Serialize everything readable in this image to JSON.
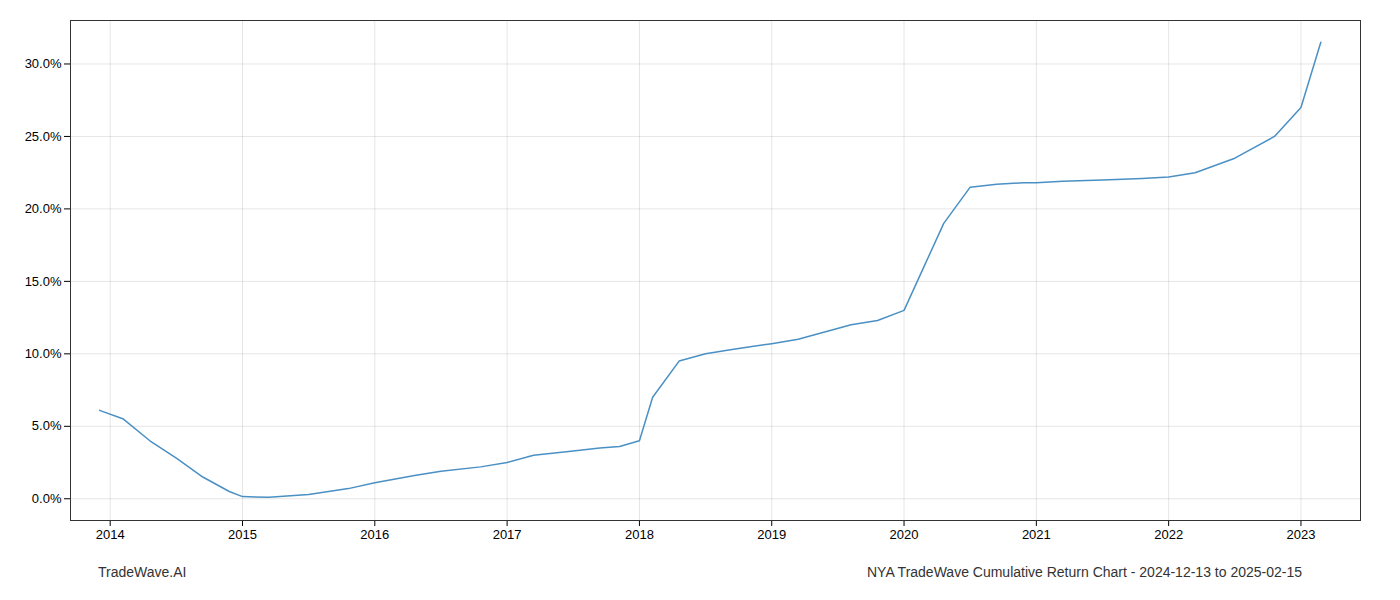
{
  "chart_data": {
    "type": "line",
    "annotations": [
      "TradeWave.AI",
      "NYA TradeWave Cumulative Return Chart - 2024-12-13 to 2025-02-15"
    ],
    "color": "#4a90c4",
    "grid": true,
    "x": [
      2013.92,
      2014.1,
      2014.3,
      2014.5,
      2014.7,
      2014.9,
      2015.0,
      2015.2,
      2015.5,
      2015.8,
      2016.0,
      2016.3,
      2016.5,
      2016.8,
      2017.0,
      2017.2,
      2017.5,
      2017.7,
      2017.85,
      2018.0,
      2018.1,
      2018.3,
      2018.5,
      2018.7,
      2018.85,
      2019.0,
      2019.2,
      2019.4,
      2019.6,
      2019.8,
      2020.0,
      2020.15,
      2020.3,
      2020.5,
      2020.7,
      2020.9,
      2021.0,
      2021.2,
      2021.5,
      2021.8,
      2022.0,
      2022.2,
      2022.5,
      2022.8,
      2023.0,
      2023.15
    ],
    "values": [
      6.1,
      5.5,
      4.0,
      2.8,
      1.5,
      0.5,
      0.15,
      0.1,
      0.3,
      0.7,
      1.1,
      1.6,
      1.9,
      2.2,
      2.5,
      3.0,
      3.3,
      3.5,
      3.6,
      4.0,
      7.0,
      9.5,
      10.0,
      10.3,
      10.5,
      10.7,
      11.0,
      11.5,
      12.0,
      12.3,
      13.0,
      16.0,
      19.0,
      21.5,
      21.7,
      21.8,
      21.8,
      21.9,
      22.0,
      22.1,
      22.2,
      22.5,
      23.5,
      25.0,
      27.0,
      31.5
    ],
    "xlim": [
      2013.7,
      2023.45
    ],
    "ylim": [
      -1.5,
      33.0
    ],
    "xticks": [
      2014,
      2015,
      2016,
      2017,
      2018,
      2019,
      2020,
      2021,
      2022,
      2023
    ],
    "yticks": [
      {
        "value": 0.0,
        "label": "0.0%"
      },
      {
        "value": 5.0,
        "label": "5.0%"
      },
      {
        "value": 10.0,
        "label": "10.0%"
      },
      {
        "value": 15.0,
        "label": "15.0%"
      },
      {
        "value": 20.0,
        "label": "20.0%"
      },
      {
        "value": 25.0,
        "label": "25.0%"
      },
      {
        "value": 30.0,
        "label": "30.0%"
      }
    ]
  }
}
